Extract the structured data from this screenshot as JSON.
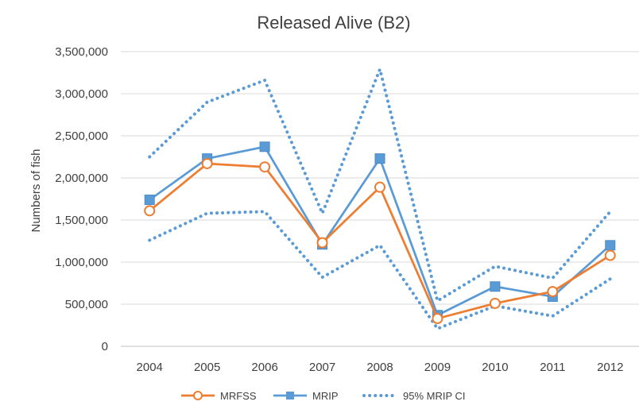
{
  "chart_data": {
    "type": "line",
    "title": "Released Alive (B2)",
    "xlabel": "",
    "ylabel": "Numbers of fish",
    "categories": [
      "2004",
      "2005",
      "2006",
      "2007",
      "2008",
      "2009",
      "2010",
      "2011",
      "2012"
    ],
    "ylim": [
      0,
      3500000
    ],
    "yticks": [
      0,
      500000,
      1000000,
      1500000,
      2000000,
      2500000,
      3000000,
      3500000
    ],
    "ytick_labels": [
      "0",
      "500,000",
      "1,000,000",
      "1,500,000",
      "2,000,000",
      "2,500,000",
      "3,000,000",
      "3,500,000"
    ],
    "grid": "horizontal",
    "legend_position": "bottom",
    "series": [
      {
        "name": "MRFSS",
        "color": "#ED7D31",
        "marker": "circle-open",
        "style": "solid",
        "values": [
          1610000,
          2170000,
          2130000,
          1230000,
          1890000,
          330000,
          510000,
          650000,
          1080000
        ]
      },
      {
        "name": "MRIP",
        "color": "#5B9BD5",
        "marker": "square",
        "style": "solid",
        "values": [
          1740000,
          2230000,
          2370000,
          1210000,
          2230000,
          370000,
          710000,
          590000,
          1200000
        ]
      },
      {
        "name": "95% MRIP CI",
        "color": "#5B9BD5",
        "marker": "none",
        "style": "dotted",
        "upper": [
          2250000,
          2900000,
          3160000,
          1580000,
          3290000,
          540000,
          950000,
          810000,
          1600000
        ],
        "lower": [
          1260000,
          1580000,
          1600000,
          820000,
          1200000,
          210000,
          480000,
          360000,
          800000
        ]
      }
    ]
  }
}
